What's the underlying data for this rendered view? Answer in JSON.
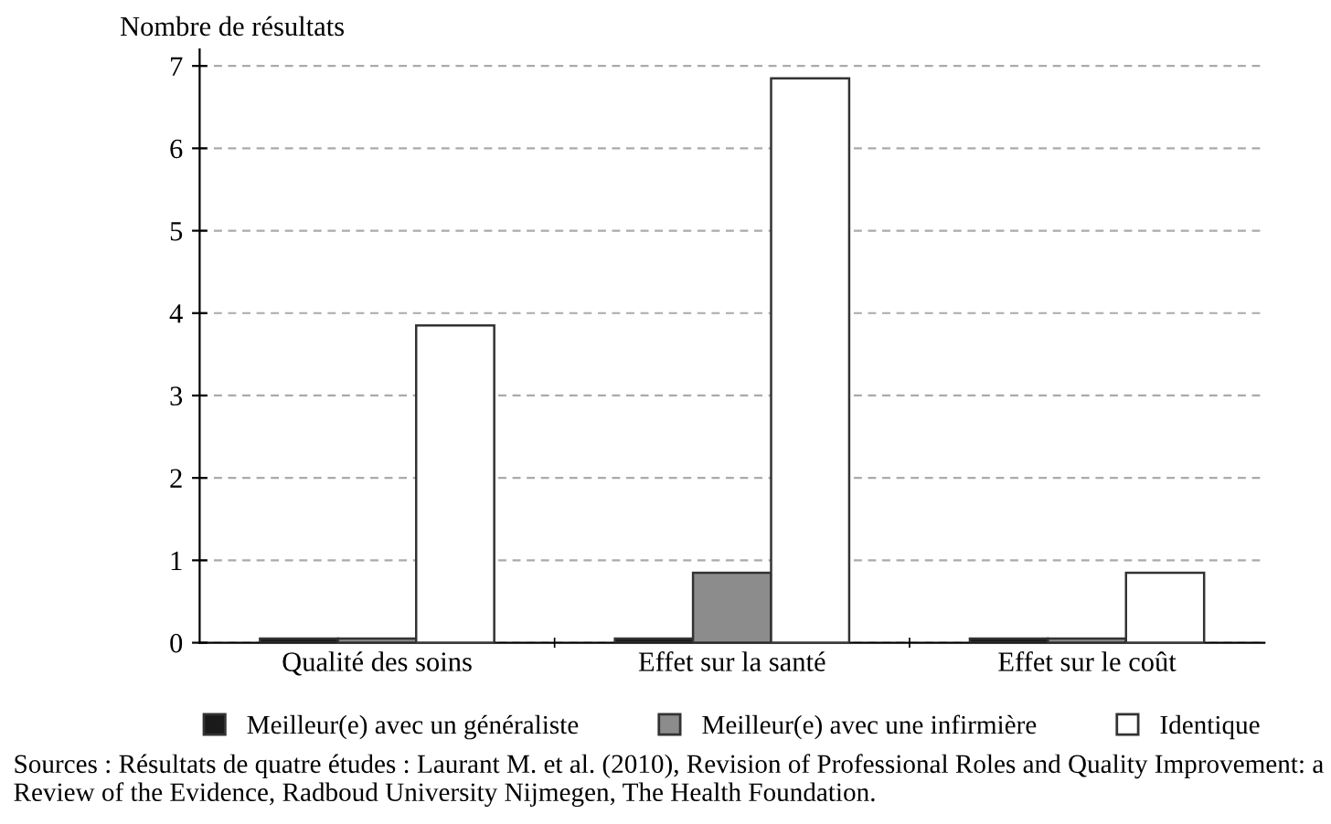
{
  "chart_data": {
    "type": "bar",
    "ylabel": "Nombre de résultats",
    "categories": [
      "Qualité des soins",
      "Effet sur la santé",
      "Effet sur le coût"
    ],
    "series": [
      {
        "name": "Meilleur(e) avec un généraliste",
        "color": "#1a1a1a",
        "values": [
          0.05,
          0.05,
          0.05
        ]
      },
      {
        "name": "Meilleur(e) avec une infirmière",
        "color": "#8c8c8c",
        "values": [
          0.05,
          0.85,
          0.05
        ]
      },
      {
        "name": "Identique",
        "color": "#ffffff",
        "values": [
          3.85,
          6.85,
          0.85
        ]
      }
    ],
    "ylim": [
      0,
      7.2
    ],
    "yticks": [
      0,
      1,
      2,
      3,
      4,
      5,
      6,
      7
    ],
    "grid": "y",
    "legend": "bottom",
    "annotations": [
      "Sources : Résultats de quatre études : Laurant M. et al. (2010), Revision of Professional Roles and Quality Improvement: a Review of the Evidence, Radboud University Nijmegen, The Health Foundation."
    ]
  }
}
